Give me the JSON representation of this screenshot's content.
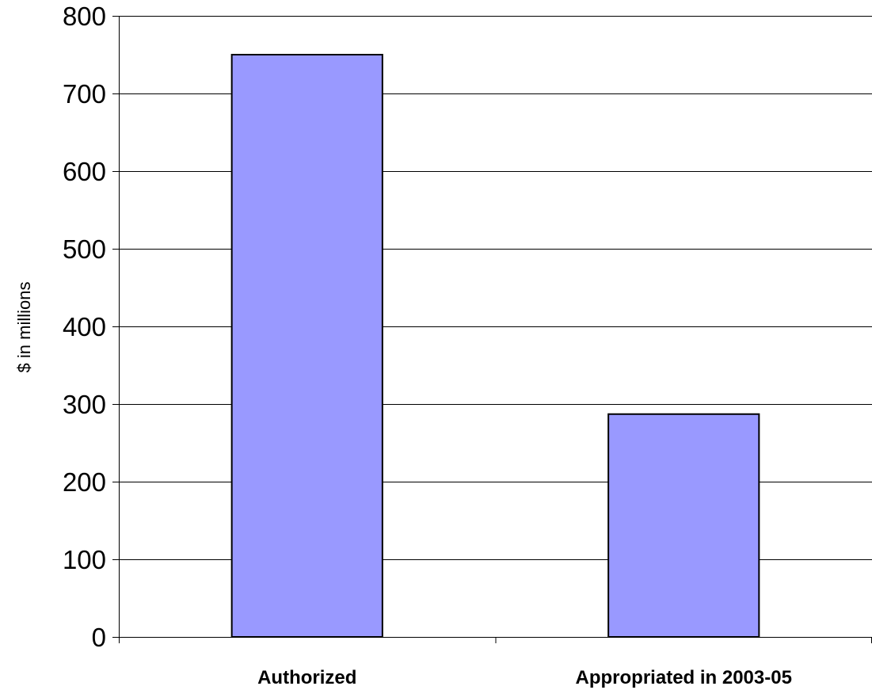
{
  "chart_data": {
    "type": "bar",
    "categories": [
      "Authorized",
      "Appropriated in 2003-05"
    ],
    "values": [
      750,
      287
    ],
    "title": "",
    "xlabel": "",
    "ylabel": "$ in millions",
    "ylim": [
      0,
      800
    ],
    "yticks": [
      0,
      100,
      200,
      300,
      400,
      500,
      600,
      700,
      800
    ],
    "ytick_labels": [
      "0",
      "100",
      "200",
      "300",
      "400",
      "500",
      "600",
      "700",
      "800"
    ],
    "grid": true,
    "legend": "none",
    "bar_color": "#9999ff",
    "bar_edge_color": "#000000"
  }
}
